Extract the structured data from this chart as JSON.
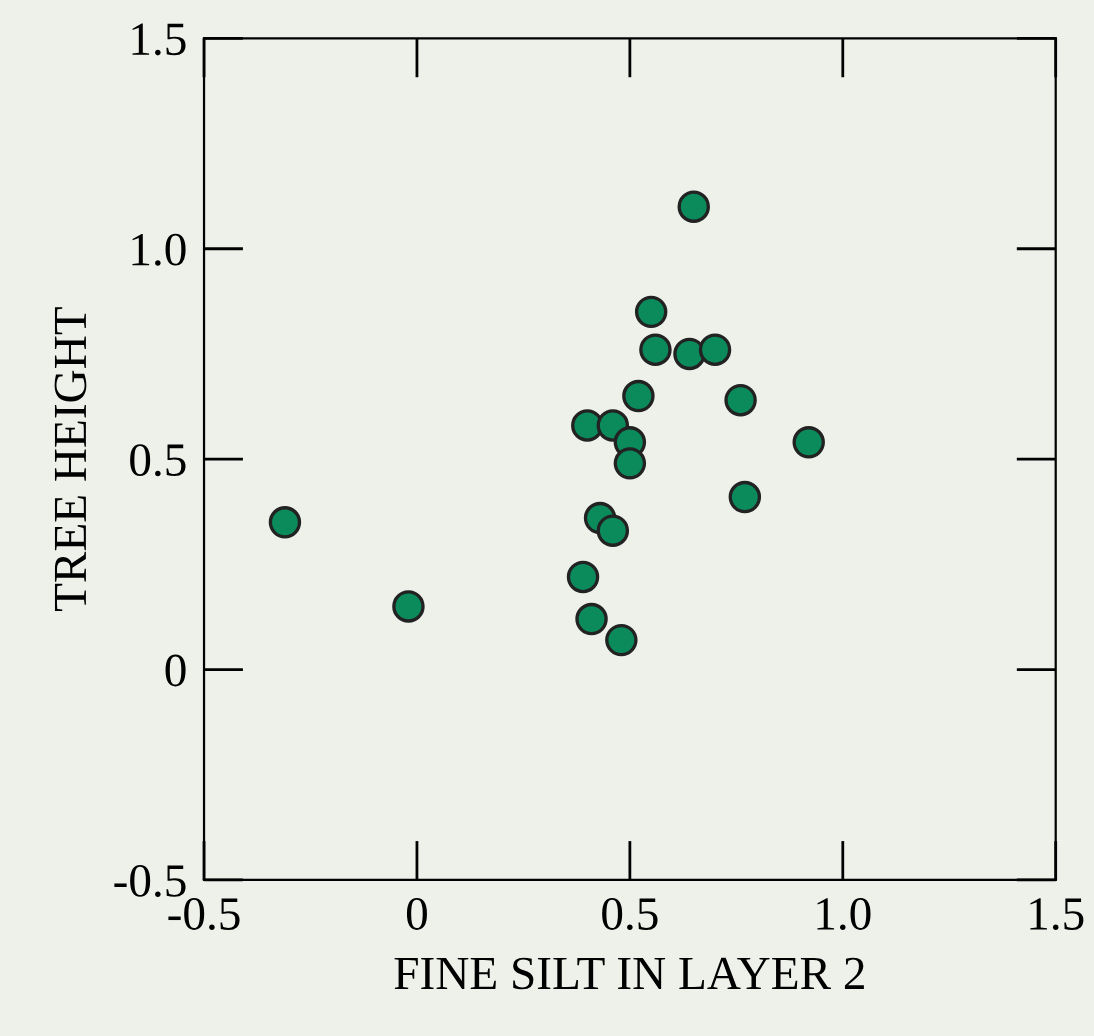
{
  "chart_data": {
    "type": "scatter",
    "xlabel": "FINE SILT IN LAYER 2",
    "ylabel": "TREE HEIGHT",
    "x": [
      -0.31,
      -0.02,
      0.39,
      0.41,
      0.48,
      0.43,
      0.46,
      0.4,
      0.46,
      0.5,
      0.5,
      0.52,
      0.55,
      0.56,
      0.64,
      0.7,
      0.65,
      0.76,
      0.77,
      0.92
    ],
    "series": [
      {
        "color": "#0b8a5c",
        "values": [
          0.35,
          0.15,
          0.22,
          0.12,
          0.07,
          0.36,
          0.33,
          0.58,
          0.58,
          0.54,
          0.49,
          0.65,
          0.85,
          0.76,
          0.75,
          0.76,
          1.1,
          0.64,
          0.41,
          0.54
        ]
      }
    ],
    "xlim": [
      -0.5,
      1.5
    ],
    "ylim": [
      -0.5,
      1.5
    ],
    "xticks": [
      {
        "value": -0.5,
        "label": "-0.5"
      },
      0,
      {
        "value": 0.5,
        "label": "0.5"
      },
      {
        "value": 1.0,
        "label": "1.0"
      },
      {
        "value": 1.5,
        "label": "1.5"
      }
    ],
    "yticks": [
      {
        "value": -0.5,
        "label": "-0.5"
      },
      0,
      {
        "value": 0.5,
        "label": "0.5"
      },
      {
        "value": 1.0,
        "label": "1.0"
      },
      {
        "value": 1.5,
        "label": "1.5"
      }
    ],
    "grid": false,
    "marker": "circle"
  }
}
